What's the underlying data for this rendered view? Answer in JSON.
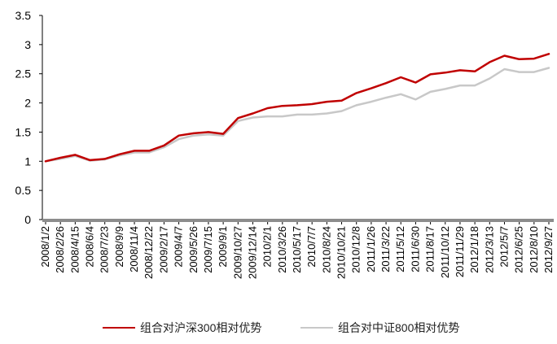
{
  "chart_data": {
    "type": "line",
    "title": "",
    "xlabel": "",
    "ylabel": "",
    "ylim": [
      0,
      3.5
    ],
    "yticks": [
      "0",
      "0.5",
      "1",
      "1.5",
      "2",
      "2.5",
      "3",
      "3.5"
    ],
    "grid": false,
    "legend_position": "bottom",
    "x": [
      "2008/1/2",
      "2008/2/26",
      "2008/4/15",
      "2008/6/4",
      "2008/7/23",
      "2008/9/9",
      "2008/11/4",
      "2008/12/22",
      "2009/2/17",
      "2009/4/7",
      "2009/5/26",
      "2009/7/15",
      "2009/9/1",
      "2009/10/27",
      "2009/12/14",
      "2010/2/1",
      "2010/3/26",
      "2010/5/17",
      "2010/7/7",
      "2010/8/24",
      "2010/10/21",
      "2010/12/8",
      "2011/1/26",
      "2011/3/22",
      "2011/5/12",
      "2011/6/30",
      "2011/8/17",
      "2011/10/12",
      "2011/11/29",
      "2012/1/18",
      "2012/3/13",
      "2012/5/7",
      "2012/6/25",
      "2012/8/10",
      "2012/9/27"
    ],
    "series": [
      {
        "name": "组合对沪深300相对优势",
        "color": "#c00000",
        "values": [
          1.0,
          1.06,
          1.11,
          1.02,
          1.04,
          1.12,
          1.18,
          1.18,
          1.27,
          1.44,
          1.48,
          1.5,
          1.47,
          1.74,
          1.82,
          1.91,
          1.95,
          1.96,
          1.98,
          2.02,
          2.04,
          2.17,
          2.25,
          2.34,
          2.44,
          2.35,
          2.49,
          2.52,
          2.56,
          2.54,
          2.7,
          2.81,
          2.75,
          2.76,
          2.84
        ]
      },
      {
        "name": "组合对中证800相对优势",
        "color": "#c8c8c8",
        "values": [
          1.0,
          1.04,
          1.09,
          1.01,
          1.03,
          1.1,
          1.15,
          1.15,
          1.24,
          1.38,
          1.44,
          1.46,
          1.44,
          1.69,
          1.75,
          1.77,
          1.77,
          1.8,
          1.8,
          1.82,
          1.86,
          1.96,
          2.02,
          2.09,
          2.15,
          2.06,
          2.19,
          2.24,
          2.3,
          2.3,
          2.42,
          2.58,
          2.53,
          2.53,
          2.6
        ]
      }
    ]
  }
}
